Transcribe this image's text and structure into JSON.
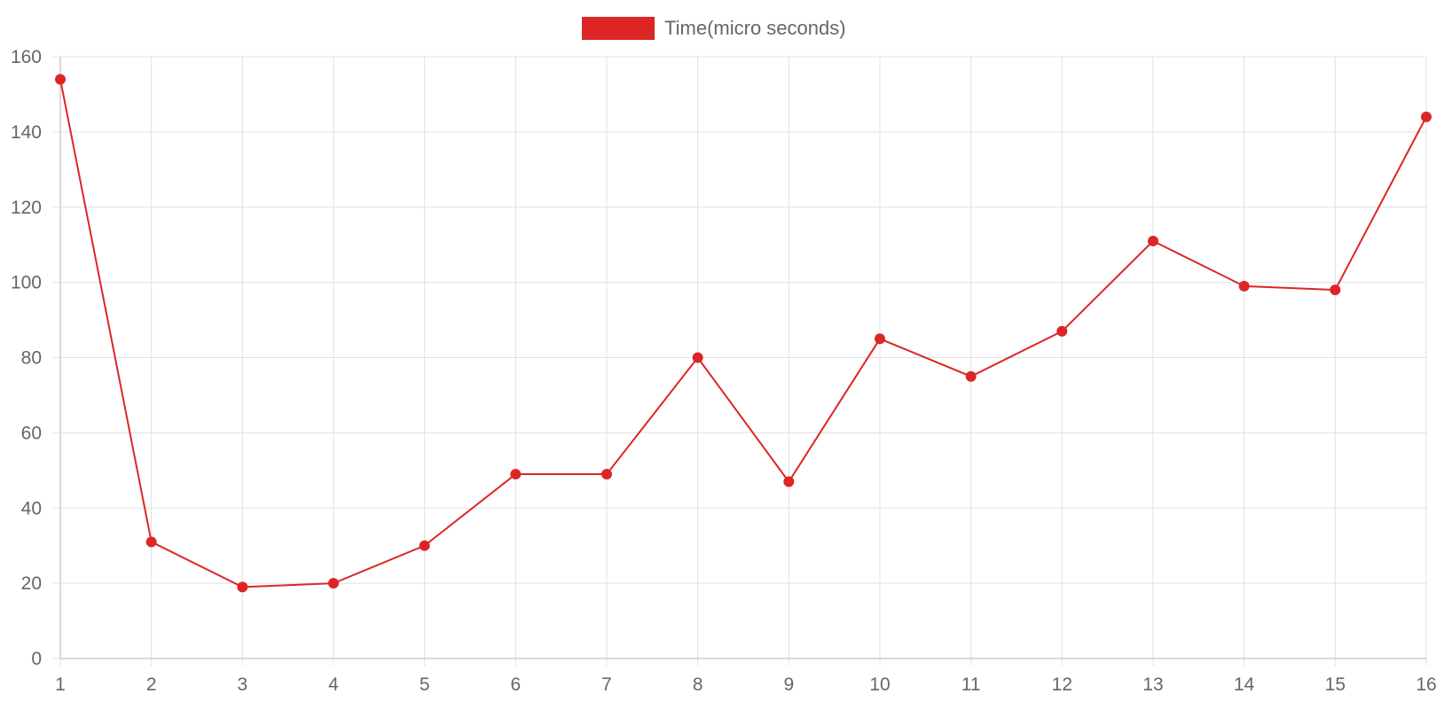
{
  "chart_data": {
    "type": "line",
    "x": [
      1,
      2,
      3,
      4,
      5,
      6,
      7,
      8,
      9,
      10,
      11,
      12,
      13,
      14,
      15,
      16
    ],
    "series": [
      {
        "name": "Time(micro seconds)",
        "color": "#dc2626",
        "values": [
          154,
          31,
          19,
          20,
          30,
          49,
          49,
          80,
          47,
          85,
          75,
          87,
          111,
          99,
          98,
          144
        ]
      }
    ],
    "ylim": [
      0,
      160
    ],
    "y_ticks": [
      0,
      20,
      40,
      60,
      80,
      100,
      120,
      140,
      160
    ],
    "x_ticks": [
      "1",
      "2",
      "3",
      "4",
      "5",
      "6",
      "7",
      "8",
      "9",
      "10",
      "11",
      "12",
      "13",
      "14",
      "15",
      "16"
    ],
    "grid": true,
    "legend_position": "top-center"
  }
}
